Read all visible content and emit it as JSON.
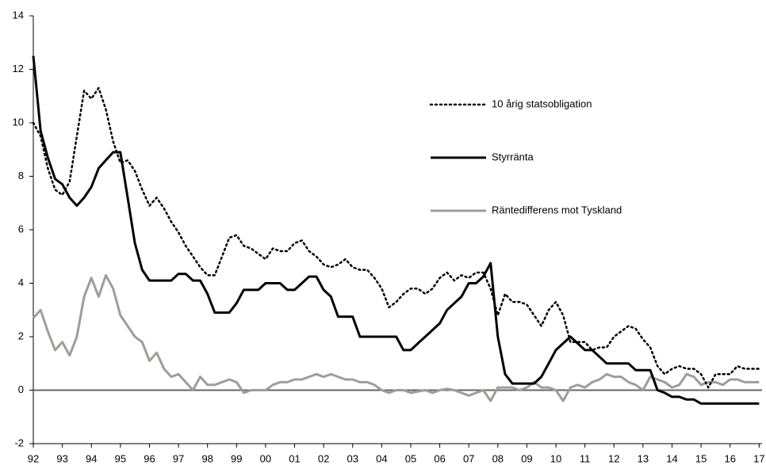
{
  "chart_data": {
    "type": "line",
    "x": [
      1992,
      1992.25,
      1992.5,
      1992.75,
      1993,
      1993.25,
      1993.5,
      1993.75,
      1994,
      1994.25,
      1994.5,
      1994.75,
      1995,
      1995.25,
      1995.5,
      1995.75,
      1996,
      1996.25,
      1996.5,
      1996.75,
      1997,
      1997.25,
      1997.5,
      1997.75,
      1998,
      1998.25,
      1998.5,
      1998.75,
      1999,
      1999.25,
      1999.5,
      1999.75,
      2000,
      2000.25,
      2000.5,
      2000.75,
      2001,
      2001.25,
      2001.5,
      2001.75,
      2002,
      2002.25,
      2002.5,
      2002.75,
      2003,
      2003.25,
      2003.5,
      2003.75,
      2004,
      2004.25,
      2004.5,
      2004.75,
      2005,
      2005.25,
      2005.5,
      2005.75,
      2006,
      2006.25,
      2006.5,
      2006.75,
      2007,
      2007.25,
      2007.5,
      2007.75,
      2008,
      2008.25,
      2008.5,
      2008.75,
      2009,
      2009.25,
      2009.5,
      2009.75,
      2010,
      2010.25,
      2010.5,
      2010.75,
      2011,
      2011.25,
      2011.5,
      2011.75,
      2012,
      2012.25,
      2012.5,
      2012.75,
      2013,
      2013.25,
      2013.5,
      2013.75,
      2014,
      2014.25,
      2014.5,
      2014.75,
      2015,
      2015.25,
      2015.5,
      2015.75,
      2016,
      2016.25,
      2016.5,
      2016.75,
      2017
    ],
    "series": [
      {
        "name": "10 årig statsobligation",
        "color": "#000000",
        "style": "dotted",
        "values": [
          10,
          9.5,
          8.3,
          7.5,
          7.3,
          7.8,
          9.5,
          11.2,
          10.9,
          11.3,
          10.5,
          9.3,
          8.5,
          8.6,
          8.2,
          7.5,
          6.9,
          7.2,
          6.8,
          6.3,
          5.9,
          5.4,
          5,
          4.6,
          4.3,
          4.3,
          5,
          5.7,
          5.8,
          5.4,
          5.3,
          5.1,
          4.9,
          5.3,
          5.2,
          5.2,
          5.5,
          5.6,
          5.2,
          5,
          4.7,
          4.6,
          4.7,
          4.9,
          4.6,
          4.5,
          4.5,
          4.2,
          3.8,
          3.1,
          3.3,
          3.6,
          3.8,
          3.8,
          3.6,
          3.8,
          4.2,
          4.4,
          4.1,
          4.3,
          4.2,
          4.4,
          4.4,
          3.8,
          2.8,
          3.6,
          3.3,
          3.3,
          3.2,
          2.8,
          2.4,
          3,
          3.3,
          2.8,
          1.8,
          1.8,
          1.8,
          1.5,
          1.6,
          1.6,
          2,
          2.2,
          2.4,
          2.3,
          1.9,
          1.6,
          0.9,
          0.6,
          0.8,
          0.9,
          0.8,
          0.8,
          0.6,
          0.1,
          0.6,
          0.6,
          0.6,
          0.9,
          0.8,
          0.8,
          0.8
        ]
      },
      {
        "name": "Styrränta",
        "color": "#000000",
        "style": "solid",
        "values": [
          12.5,
          9.7,
          8.7,
          7.9,
          7.7,
          7.2,
          6.9,
          7.2,
          7.6,
          8.3,
          8.6,
          8.9,
          8.9,
          7.2,
          5.5,
          4.5,
          4.1,
          4.1,
          4.1,
          4.1,
          4.35,
          4.35,
          4.1,
          4.1,
          3.6,
          2.9,
          2.9,
          2.9,
          3.25,
          3.75,
          3.75,
          3.75,
          4,
          4,
          4,
          3.75,
          3.75,
          4,
          4.25,
          4.25,
          3.75,
          3.5,
          2.75,
          2.75,
          2.75,
          2,
          2,
          2,
          2,
          2,
          2,
          1.5,
          1.5,
          1.75,
          2,
          2.25,
          2.5,
          3,
          3.25,
          3.5,
          4,
          4,
          4.25,
          4.75,
          2,
          0.6,
          0.25,
          0.25,
          0.25,
          0.25,
          0.5,
          1,
          1.5,
          1.75,
          2,
          1.75,
          1.5,
          1.5,
          1.25,
          1,
          1,
          1,
          1,
          0.75,
          0.75,
          0.75,
          0,
          -0.1,
          -0.25,
          -0.25,
          -0.35,
          -0.35,
          -0.5,
          -0.5,
          -0.5,
          -0.5,
          -0.5,
          -0.5,
          -0.5,
          -0.5,
          -0.5
        ]
      },
      {
        "name": "Räntedifferens mot Tyskland",
        "color": "#a09c9a",
        "style": "solid",
        "values": [
          2.7,
          3,
          2.2,
          1.5,
          1.8,
          1.3,
          2,
          3.5,
          4.2,
          3.5,
          4.3,
          3.8,
          2.8,
          2.4,
          2,
          1.8,
          1.1,
          1.4,
          0.8,
          0.5,
          0.6,
          0.3,
          0,
          0.5,
          0.2,
          0.2,
          0.3,
          0.4,
          0.3,
          -0.1,
          0,
          0,
          0,
          0.2,
          0.3,
          0.3,
          0.4,
          0.4,
          0.5,
          0.6,
          0.5,
          0.6,
          0.5,
          0.4,
          0.4,
          0.3,
          0.3,
          0.2,
          0,
          -0.1,
          0,
          0,
          -0.1,
          -0.05,
          0,
          -0.1,
          0,
          0.05,
          0,
          -0.1,
          -0.2,
          -0.1,
          0,
          -0.4,
          0.1,
          0.1,
          0.1,
          0,
          0.1,
          0.3,
          0.1,
          0.1,
          0,
          -0.4,
          0.1,
          0.2,
          0.1,
          0.3,
          0.4,
          0.6,
          0.5,
          0.5,
          0.3,
          0.2,
          0,
          0.5,
          0.4,
          0.3,
          0.1,
          0.2,
          0.6,
          0.5,
          0.2,
          0.3,
          0.3,
          0.2,
          0.4,
          0.4,
          0.3,
          0.3,
          0.3
        ]
      }
    ],
    "xlim": [
      1992,
      2017.1
    ],
    "xticks": [
      {
        "value": 1992,
        "label": "92"
      },
      {
        "value": 1993,
        "label": "93"
      },
      {
        "value": 1994,
        "label": "94"
      },
      {
        "value": 1995,
        "label": "95"
      },
      {
        "value": 1996,
        "label": "96"
      },
      {
        "value": 1997,
        "label": "97"
      },
      {
        "value": 1998,
        "label": "98"
      },
      {
        "value": 1999,
        "label": "99"
      },
      {
        "value": 2000,
        "label": "00"
      },
      {
        "value": 2001,
        "label": "01"
      },
      {
        "value": 2002,
        "label": "02"
      },
      {
        "value": 2003,
        "label": "03"
      },
      {
        "value": 2004,
        "label": "04"
      },
      {
        "value": 2005,
        "label": "05"
      },
      {
        "value": 2006,
        "label": "06"
      },
      {
        "value": 2007,
        "label": "07"
      },
      {
        "value": 2008,
        "label": "08"
      },
      {
        "value": 2009,
        "label": "09"
      },
      {
        "value": 2010,
        "label": "10"
      },
      {
        "value": 2011,
        "label": "11"
      },
      {
        "value": 2012,
        "label": "12"
      },
      {
        "value": 2013,
        "label": "13"
      },
      {
        "value": 2014,
        "label": "14"
      },
      {
        "value": 2015,
        "label": "15"
      },
      {
        "value": 2016,
        "label": "16"
      },
      {
        "value": 2017,
        "label": "17"
      }
    ],
    "ylim": [
      -2,
      14
    ],
    "yticks": [
      -2,
      0,
      2,
      4,
      6,
      8,
      10,
      12,
      14
    ],
    "grid": false
  }
}
